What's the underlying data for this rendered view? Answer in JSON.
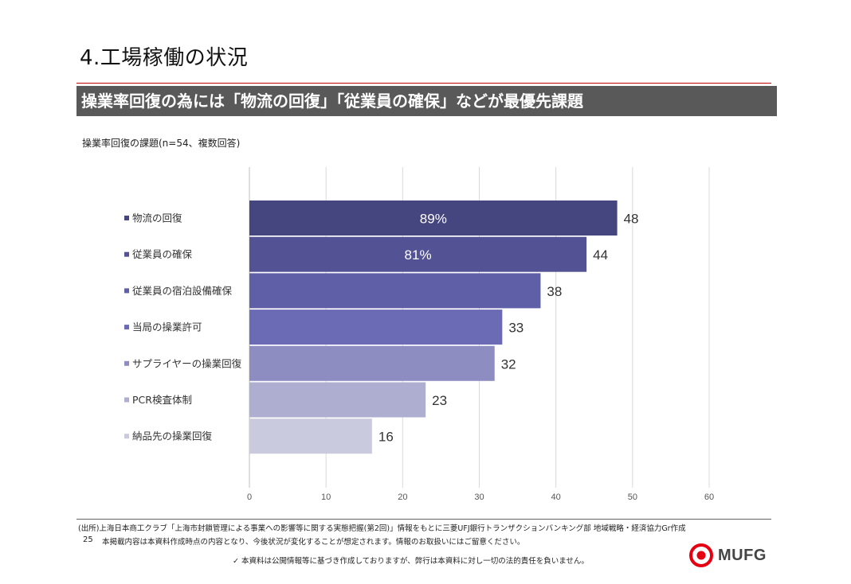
{
  "page": {
    "title": "4.工場稼働の状況",
    "banner": "操業率回復の為には「物流の回復」「従業員の確保」などが最優先課題",
    "page_number": "25"
  },
  "chart_data": {
    "type": "bar",
    "orientation": "horizontal",
    "title": "操業率回復の課題(n=54、複数回答)",
    "categories": [
      "物流の回復",
      "従業員の確保",
      "従業員の宿泊設備確保",
      "当局の操業許可",
      "サプライヤーの操業回復",
      "PCR検査体制",
      "納品先の操業回復"
    ],
    "values": [
      48,
      44,
      38,
      33,
      32,
      23,
      16
    ],
    "percent_labels": [
      "89%",
      "81%",
      "",
      "",
      "",
      "",
      ""
    ],
    "colors": [
      "#45457f",
      "#525294",
      "#5f5fa8",
      "#6b6bb5",
      "#8d8dc2",
      "#aeaed1",
      "#cacadf"
    ],
    "xlim": [
      0,
      60
    ],
    "xticks": [
      0,
      10,
      20,
      30,
      40,
      50,
      60
    ],
    "grid": true
  },
  "footer": {
    "source": "(出所)上海日本商工クラブ「上海市封鎖管理による事業への影響等に関する実態把握(第2回)」情報をもとに三菱UFJ銀行トランザクションバンキング部 地域戦略・経済協力Gr作成",
    "note": "本掲載内容は本資料作成時点の内容となり、今後状況が変化することが想定されます。情報のお取扱いにはご留意ください。",
    "disclaimer": "✓ 本資料は公開情報等に基づき作成しておりますが、弊行は本資料に対し一切の法的責任を負いません。"
  },
  "logo": {
    "text": "MUFG",
    "color": "#e60012"
  }
}
